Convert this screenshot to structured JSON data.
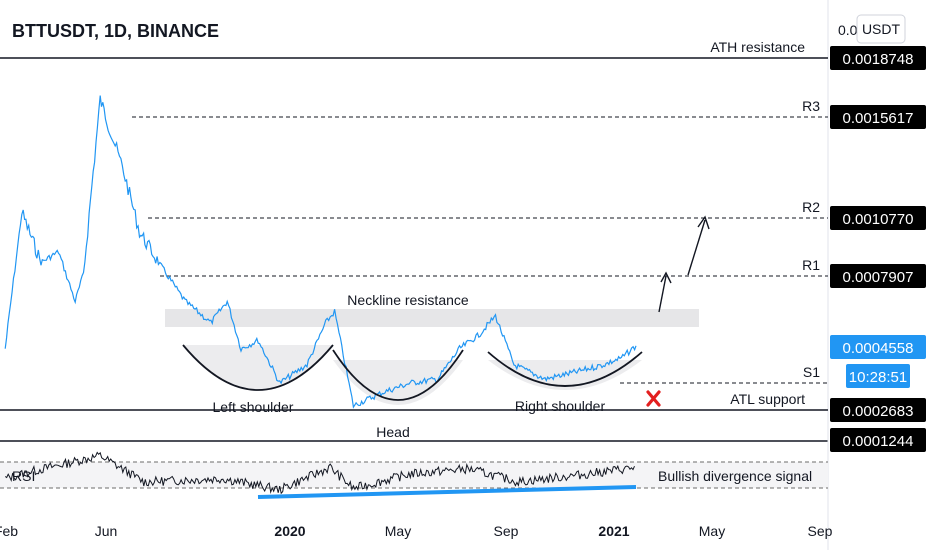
{
  "header": {
    "title": "BTTUSDT, 1D, BINANCE",
    "currency_button": "USDT",
    "axis_top_partial": "0.0"
  },
  "chart_data": {
    "type": "line",
    "symbol": "BTTUSDT",
    "interval": "1D",
    "exchange": "BINANCE",
    "x_tick_labels": [
      "Feb",
      "Jun",
      "2020",
      "May",
      "Sep",
      "2021",
      "May",
      "Sep"
    ],
    "price_labels": [
      {
        "value": 0.0018748,
        "text": "0.0018748",
        "style": "black"
      },
      {
        "value": 0.0015617,
        "text": "0.0015617",
        "style": "black"
      },
      {
        "value": 0.001077,
        "text": "0.0010770",
        "style": "black"
      },
      {
        "value": 0.0007907,
        "text": "0.0007907",
        "style": "black"
      },
      {
        "value": 0.0004558,
        "text": "0.0004558",
        "style": "current"
      },
      {
        "value": 0.0002683,
        "text": "0.0002683",
        "style": "black"
      },
      {
        "value": 0.0001244,
        "text": "0.0001244",
        "style": "black"
      }
    ],
    "countdown": "10:28:51",
    "levels": [
      {
        "label": "ATH resistance",
        "value": 0.0018748,
        "line": "solid"
      },
      {
        "label": "R3",
        "value": 0.0015617,
        "line": "dashed"
      },
      {
        "label": "R2",
        "value": 0.001077,
        "line": "dashed"
      },
      {
        "label": "R1",
        "value": 0.0007907,
        "line": "dashed"
      },
      {
        "label": "S1",
        "value": 0.00035,
        "line": "dashed"
      },
      {
        "label": "ATL support",
        "value": 0.0002683,
        "line": "solid"
      }
    ],
    "annotations": [
      "Neckline resistance",
      "Left shoulder",
      "Head",
      "Right shoulder",
      "Bullish divergence signal"
    ],
    "rsi_label": "RSI",
    "price_series": [
      [
        "2019-01-31",
        0.00045
      ],
      [
        "2019-02-20",
        0.0011
      ],
      [
        "2019-03-15",
        0.00085
      ],
      [
        "2019-04-05",
        0.0009
      ],
      [
        "2019-04-25",
        0.00065
      ],
      [
        "2019-05-05",
        0.0008
      ],
      [
        "2019-05-25",
        0.00165
      ],
      [
        "2019-06-05",
        0.0015
      ],
      [
        "2019-06-20",
        0.0013
      ],
      [
        "2019-07-10",
        0.001
      ],
      [
        "2019-08-01",
        0.00085
      ],
      [
        "2019-09-01",
        0.00065
      ],
      [
        "2019-10-01",
        0.00055
      ],
      [
        "2019-10-20",
        0.00065
      ],
      [
        "2019-11-05",
        0.00045
      ],
      [
        "2019-11-25",
        0.00048
      ],
      [
        "2019-12-20",
        0.00035
      ],
      [
        "2020-01-20",
        0.0004
      ],
      [
        "2020-02-10",
        0.00055
      ],
      [
        "2020-02-20",
        0.0006
      ],
      [
        "2020-03-12",
        0.00028
      ],
      [
        "2020-04-15",
        0.00032
      ],
      [
        "2020-05-15",
        0.00035
      ],
      [
        "2020-06-15",
        0.00036
      ],
      [
        "2020-07-10",
        0.00045
      ],
      [
        "2020-08-01",
        0.0005
      ],
      [
        "2020-08-20",
        0.00058
      ],
      [
        "2020-09-10",
        0.0004
      ],
      [
        "2020-10-15",
        0.00036
      ],
      [
        "2020-11-20",
        0.00038
      ],
      [
        "2020-12-20",
        0.0004
      ],
      [
        "2021-01-10",
        0.00042
      ],
      [
        "2021-01-28",
        0.00046
      ]
    ],
    "rsi_series": [
      [
        "2019-01-31",
        45
      ],
      [
        "2019-03-01",
        55
      ],
      [
        "2019-05-25",
        80
      ],
      [
        "2019-07-15",
        40
      ],
      [
        "2019-10-15",
        45
      ],
      [
        "2019-12-20",
        28
      ],
      [
        "2020-02-15",
        62
      ],
      [
        "2020-03-12",
        30
      ],
      [
        "2020-05-15",
        52
      ],
      [
        "2020-07-20",
        60
      ],
      [
        "2020-09-15",
        40
      ],
      [
        "2020-11-20",
        50
      ],
      [
        "2021-01-28",
        62
      ]
    ]
  }
}
